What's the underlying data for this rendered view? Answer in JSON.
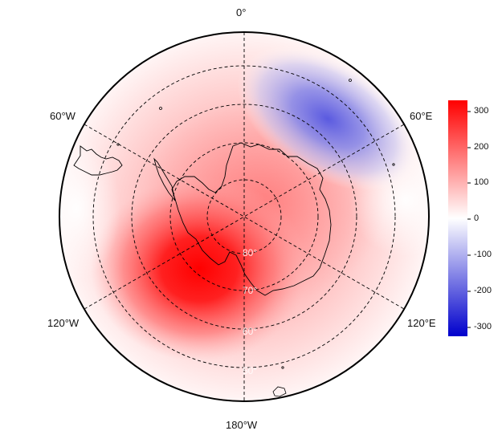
{
  "map": {
    "projection": "south-polar-stereographic",
    "longitude_labels": {
      "top": "0°",
      "upper_right": "60°E",
      "lower_right": "120°E",
      "bottom": "180°W",
      "lower_left": "120°W",
      "upper_left": "60°W"
    },
    "latitude_labels": [
      "60°",
      "70°",
      "80°",
      "50°"
    ],
    "anomaly_high_color": "#ff0000",
    "anomaly_low_color": "#3333dd"
  },
  "colorbar": {
    "ticks": [
      "300",
      "200",
      "100",
      "0",
      "-100",
      "-200",
      "-300"
    ],
    "min_color": "#0000cc",
    "mid_color": "#ffffff",
    "max_color": "#ff0000",
    "range": [
      -330,
      330
    ]
  }
}
